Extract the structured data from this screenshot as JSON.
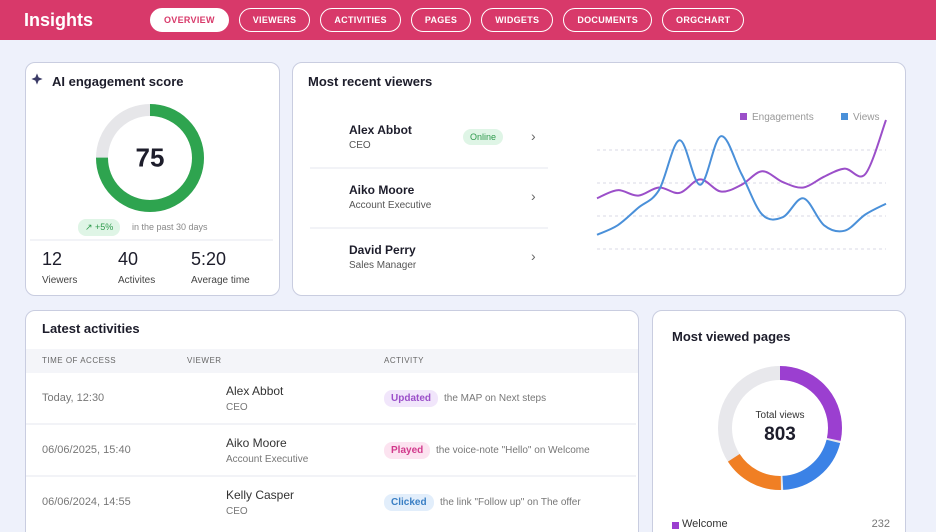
{
  "nav": {
    "title": "Insights",
    "tabs": [
      "OVERVIEW",
      "VIEWERS",
      "ACTIVITIES",
      "PAGES",
      "WIDGETS",
      "DOCUMENTS",
      "ORGCHART"
    ],
    "active_tab": 0
  },
  "engagement": {
    "title": "AI engagement score",
    "score": 75,
    "scale": [
      0,
      100
    ],
    "color": "#2ea44f",
    "track_color": "#e6e6e9",
    "change": "+5%",
    "change_note": "in the past 30 days",
    "stats": [
      {
        "value": 12,
        "label": "Viewers"
      },
      {
        "value": 40,
        "label": "Activites"
      },
      {
        "value": "5:20",
        "label": "Average time"
      }
    ]
  },
  "recent_viewers": {
    "title": "Most recent viewers",
    "viewers": [
      {
        "name": "Alex Abbot",
        "role": "CEO",
        "status": "Online"
      },
      {
        "name": "Aiko Moore",
        "role": "Account Executive"
      },
      {
        "name": "David Perry",
        "role": "Sales Manager"
      }
    ]
  },
  "chart_data": {
    "type": "line",
    "categories": [
      null,
      null,
      null,
      null,
      null,
      null,
      null,
      null,
      null,
      null,
      null,
      null,
      null,
      null,
      null
    ],
    "ylim": [
      0,
      100
    ],
    "legend": "top-right",
    "series": [
      {
        "name": "Engagements",
        "color": "#9b4fc9",
        "values": [
          42,
          48,
          44,
          50,
          46,
          56,
          47,
          52,
          62,
          54,
          50,
          58,
          64,
          60,
          100
        ]
      },
      {
        "name": "Views",
        "color": "#4a90d9",
        "values": [
          15,
          22,
          35,
          48,
          85,
          52,
          88,
          60,
          30,
          28,
          42,
          22,
          18,
          30,
          38
        ]
      }
    ]
  },
  "activities": {
    "title": "Latest activities",
    "columns": [
      "TIME OF ACCESS",
      "VIEWER",
      "ACTIVITY"
    ],
    "rows": [
      {
        "time": "Today, 12:30",
        "viewer": "Alex Abbot",
        "role": "CEO",
        "action": "Updated",
        "detail": "the MAP on Next steps",
        "action_color": "#9b4fc9",
        "action_bg": "#f1e6fb"
      },
      {
        "time": "06/06/2025, 15:40",
        "viewer": "Aiko Moore",
        "role": "Account Executive",
        "action": "Played",
        "detail": "the voice-note \"Hello\" on Welcome",
        "action_color": "#d13a8c",
        "action_bg": "#fce3f0"
      },
      {
        "time": "06/06/2024, 14:55",
        "viewer": "Kelly Casper",
        "role": "CEO",
        "action": "Clicked",
        "detail": "the link \"Follow up\" on The offer",
        "action_color": "#3a7fc4",
        "action_bg": "#e2eefb"
      }
    ]
  },
  "pages": {
    "title": "Most viewed pages",
    "total_label": "Total views",
    "total": 803,
    "track_color": "#e8e8ec",
    "segments": [
      {
        "name": "Welcome",
        "value": 232,
        "color": "#9b3fd0"
      },
      {
        "value": 167,
        "color": "#3b82e6"
      },
      {
        "value": 134,
        "color": "#f07f24"
      }
    ]
  }
}
